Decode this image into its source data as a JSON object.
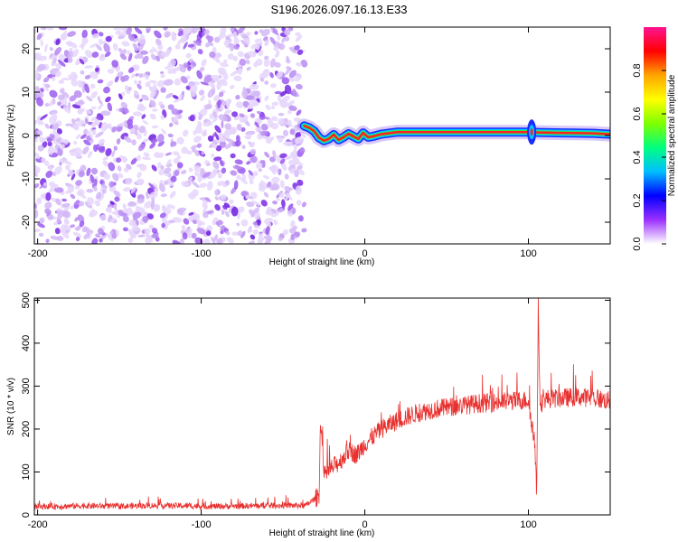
{
  "title": "S196.2026.097.16.13.E33",
  "chart_data": [
    {
      "type": "heatmap",
      "xlabel": "Height of straight line (km)",
      "ylabel": "Frequency (Hz)",
      "xlim": [
        -202,
        150
      ],
      "ylim": [
        -25,
        25
      ],
      "xticks": [
        -200,
        -100,
        0,
        100
      ],
      "yticks": [
        -20,
        -10,
        0,
        10,
        20
      ],
      "xtick_labels": [
        "-200",
        "-100",
        "0",
        "100"
      ],
      "ytick_labels": [
        "-20",
        "-10",
        "0",
        "10",
        "20"
      ],
      "noise_region_x": [
        -202,
        -37
      ],
      "signal_region_x": [
        -37,
        150
      ],
      "signal_track": {
        "x": [
          -37,
          -34,
          -31,
          -28,
          -25,
          -22,
          -19,
          -16,
          -13,
          -10,
          -7,
          -4,
          -1,
          2,
          5,
          10,
          20,
          40,
          60,
          80,
          98,
          102,
          106,
          120,
          140,
          150
        ],
        "y": [
          2.2,
          1.8,
          1.0,
          -0.5,
          -1.2,
          -0.8,
          0.2,
          -1.0,
          -0.4,
          0.4,
          -0.2,
          -0.8,
          0.6,
          -0.4,
          -0.2,
          0.3,
          0.8,
          0.8,
          0.8,
          0.8,
          0.8,
          0.8,
          0.7,
          0.6,
          0.5,
          0.3
        ]
      },
      "colorbar": {
        "label": "Normalized spectral amplitude",
        "range": [
          0,
          1
        ],
        "ticks": [
          0.0,
          0.2,
          0.4,
          0.6,
          0.8
        ],
        "tick_labels": [
          "0.0",
          "0.2",
          "0.4",
          "0.6",
          "0.8"
        ],
        "colors": [
          "#ffffff",
          "#9b30ff",
          "#0000ff",
          "#00bfff",
          "#00ff7f",
          "#7fff00",
          "#ffff00",
          "#ffa500",
          "#ff0000",
          "#ff1493"
        ]
      }
    },
    {
      "type": "line",
      "xlabel": "Height of straight line (km)",
      "ylabel": "SNR (10 * v/v)",
      "xlim": [
        -202,
        150
      ],
      "ylim": [
        0,
        505
      ],
      "xticks": [
        -200,
        -100,
        0,
        100
      ],
      "yticks": [
        0,
        100,
        200,
        300,
        400,
        500
      ],
      "xtick_labels": [
        "-200",
        "-100",
        "0",
        "100"
      ],
      "ytick_labels": [
        "0",
        "100",
        "200",
        "300",
        "400",
        "500"
      ],
      "series": [
        {
          "color": "#e8312f",
          "x": [
            -202,
            -190,
            -170,
            -150,
            -130,
            -110,
            -90,
            -70,
            -50,
            -36,
            -28,
            -27,
            -25,
            -20,
            -15,
            -10,
            -5,
            0,
            10,
            20,
            30,
            40,
            50,
            60,
            70,
            80,
            90,
            100,
            104,
            105,
            106,
            107,
            108,
            110,
            120,
            130,
            140,
            150
          ],
          "y": [
            20,
            20,
            21,
            20,
            22,
            21,
            20,
            21,
            22,
            22,
            45,
            230,
            90,
            110,
            125,
            150,
            140,
            165,
            200,
            220,
            235,
            245,
            250,
            255,
            260,
            262,
            265,
            268,
            160,
            35,
            500,
            280,
            260,
            270,
            272,
            275,
            272,
            265
          ]
        }
      ]
    }
  ]
}
